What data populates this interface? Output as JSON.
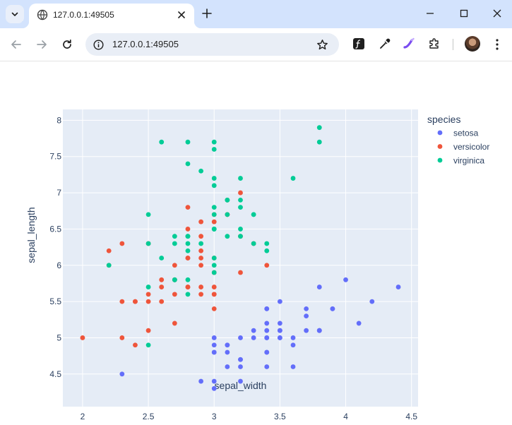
{
  "browser": {
    "tab_title": "127.0.0.1:49505",
    "url": "127.0.0.1:49505"
  },
  "colors": {
    "setosa": "#636efa",
    "versicolor": "#ef553b",
    "virginica": "#00cc96",
    "plot_bg": "#e5ecf6",
    "text": "#2a3f5f"
  },
  "chart_data": {
    "type": "scatter",
    "xlabel": "sepal_width",
    "ylabel": "sepal_length",
    "xlim": [
      1.85,
      4.55
    ],
    "ylim": [
      4.05,
      8.15
    ],
    "xticks": [
      2,
      2.5,
      3,
      3.5,
      4,
      4.5
    ],
    "yticks": [
      4.5,
      5,
      5.5,
      6,
      6.5,
      7,
      7.5,
      8
    ],
    "xtick_labels": [
      "2",
      "2.5",
      "3",
      "3.5",
      "4",
      "4.5"
    ],
    "ytick_labels": [
      "4.5",
      "5",
      "5.5",
      "6",
      "6.5",
      "7",
      "7.5",
      "8"
    ],
    "grid": true,
    "legend_title": "species",
    "legend_position": "top-right-outside",
    "series": [
      {
        "name": "setosa",
        "points": [
          [
            3.5,
            5.1
          ],
          [
            3.0,
            4.9
          ],
          [
            3.2,
            4.7
          ],
          [
            3.1,
            4.6
          ],
          [
            3.6,
            5.0
          ],
          [
            3.9,
            5.4
          ],
          [
            3.4,
            4.6
          ],
          [
            3.4,
            5.0
          ],
          [
            2.9,
            4.4
          ],
          [
            3.1,
            4.9
          ],
          [
            3.7,
            5.4
          ],
          [
            3.4,
            4.8
          ],
          [
            3.0,
            4.8
          ],
          [
            3.0,
            4.3
          ],
          [
            4.0,
            5.8
          ],
          [
            4.4,
            5.7
          ],
          [
            3.9,
            5.4
          ],
          [
            3.5,
            5.1
          ],
          [
            3.8,
            5.7
          ],
          [
            3.8,
            5.1
          ],
          [
            3.4,
            5.4
          ],
          [
            3.7,
            5.1
          ],
          [
            3.6,
            4.6
          ],
          [
            3.3,
            5.1
          ],
          [
            3.4,
            4.8
          ],
          [
            3.0,
            5.0
          ],
          [
            3.4,
            5.0
          ],
          [
            3.5,
            5.2
          ],
          [
            3.4,
            5.2
          ],
          [
            3.2,
            4.7
          ],
          [
            3.1,
            4.8
          ],
          [
            3.4,
            5.4
          ],
          [
            4.1,
            5.2
          ],
          [
            4.2,
            5.5
          ],
          [
            3.1,
            4.9
          ],
          [
            3.2,
            5.0
          ],
          [
            3.5,
            5.5
          ],
          [
            3.6,
            4.9
          ],
          [
            3.0,
            4.4
          ],
          [
            3.4,
            5.1
          ],
          [
            3.5,
            5.0
          ],
          [
            2.3,
            4.5
          ],
          [
            3.2,
            4.4
          ],
          [
            3.5,
            5.0
          ],
          [
            3.8,
            5.1
          ],
          [
            3.0,
            4.8
          ],
          [
            3.8,
            5.1
          ],
          [
            3.2,
            4.6
          ],
          [
            3.7,
            5.3
          ],
          [
            3.3,
            5.0
          ]
        ]
      },
      {
        "name": "versicolor",
        "points": [
          [
            3.2,
            7.0
          ],
          [
            3.2,
            6.4
          ],
          [
            3.1,
            6.9
          ],
          [
            2.3,
            5.5
          ],
          [
            2.8,
            6.5
          ],
          [
            2.8,
            5.7
          ],
          [
            3.3,
            6.3
          ],
          [
            2.4,
            4.9
          ],
          [
            2.9,
            6.6
          ],
          [
            2.7,
            5.2
          ],
          [
            2.0,
            5.0
          ],
          [
            3.0,
            5.9
          ],
          [
            2.2,
            6.0
          ],
          [
            2.9,
            6.1
          ],
          [
            2.9,
            5.6
          ],
          [
            3.1,
            6.7
          ],
          [
            3.0,
            5.6
          ],
          [
            2.7,
            5.8
          ],
          [
            2.2,
            6.2
          ],
          [
            2.5,
            5.6
          ],
          [
            3.2,
            5.9
          ],
          [
            2.8,
            6.1
          ],
          [
            2.5,
            6.3
          ],
          [
            2.8,
            6.1
          ],
          [
            2.9,
            6.4
          ],
          [
            3.0,
            6.6
          ],
          [
            2.8,
            6.8
          ],
          [
            3.0,
            6.7
          ],
          [
            2.9,
            6.0
          ],
          [
            2.6,
            5.7
          ],
          [
            2.4,
            5.5
          ],
          [
            2.4,
            5.5
          ],
          [
            2.7,
            5.8
          ],
          [
            2.7,
            6.0
          ],
          [
            3.0,
            5.4
          ],
          [
            3.4,
            6.0
          ],
          [
            3.1,
            6.7
          ],
          [
            2.3,
            6.3
          ],
          [
            3.0,
            5.6
          ],
          [
            2.5,
            5.5
          ],
          [
            2.6,
            5.5
          ],
          [
            3.0,
            6.1
          ],
          [
            2.6,
            5.8
          ],
          [
            2.3,
            5.0
          ],
          [
            2.7,
            5.6
          ],
          [
            3.0,
            5.7
          ],
          [
            2.9,
            5.7
          ],
          [
            2.9,
            6.2
          ],
          [
            2.5,
            5.1
          ],
          [
            2.8,
            5.7
          ]
        ]
      },
      {
        "name": "virginica",
        "points": [
          [
            3.3,
            6.3
          ],
          [
            2.7,
            5.8
          ],
          [
            3.0,
            7.1
          ],
          [
            2.9,
            6.3
          ],
          [
            3.0,
            6.5
          ],
          [
            3.0,
            7.6
          ],
          [
            2.5,
            4.9
          ],
          [
            2.9,
            7.3
          ],
          [
            2.5,
            6.7
          ],
          [
            3.6,
            7.2
          ],
          [
            3.2,
            6.5
          ],
          [
            2.7,
            6.4
          ],
          [
            3.0,
            6.8
          ],
          [
            2.5,
            5.7
          ],
          [
            2.8,
            5.8
          ],
          [
            3.2,
            6.4
          ],
          [
            3.0,
            6.5
          ],
          [
            3.8,
            7.7
          ],
          [
            2.6,
            7.7
          ],
          [
            2.2,
            6.0
          ],
          [
            3.2,
            6.9
          ],
          [
            2.8,
            5.6
          ],
          [
            2.8,
            7.7
          ],
          [
            2.7,
            6.3
          ],
          [
            3.3,
            6.7
          ],
          [
            3.2,
            7.2
          ],
          [
            2.8,
            6.2
          ],
          [
            3.0,
            6.1
          ],
          [
            2.8,
            6.4
          ],
          [
            3.0,
            7.2
          ],
          [
            2.8,
            7.4
          ],
          [
            3.8,
            7.9
          ],
          [
            2.8,
            6.4
          ],
          [
            2.8,
            6.3
          ],
          [
            2.6,
            6.1
          ],
          [
            3.0,
            7.7
          ],
          [
            3.4,
            6.3
          ],
          [
            3.1,
            6.4
          ],
          [
            3.0,
            6.0
          ],
          [
            3.1,
            6.9
          ],
          [
            3.1,
            6.7
          ],
          [
            3.1,
            6.9
          ],
          [
            2.7,
            5.8
          ],
          [
            3.2,
            6.8
          ],
          [
            3.3,
            6.7
          ],
          [
            3.0,
            6.7
          ],
          [
            2.5,
            6.3
          ],
          [
            3.0,
            6.5
          ],
          [
            3.4,
            6.2
          ],
          [
            3.0,
            5.9
          ]
        ]
      }
    ]
  }
}
